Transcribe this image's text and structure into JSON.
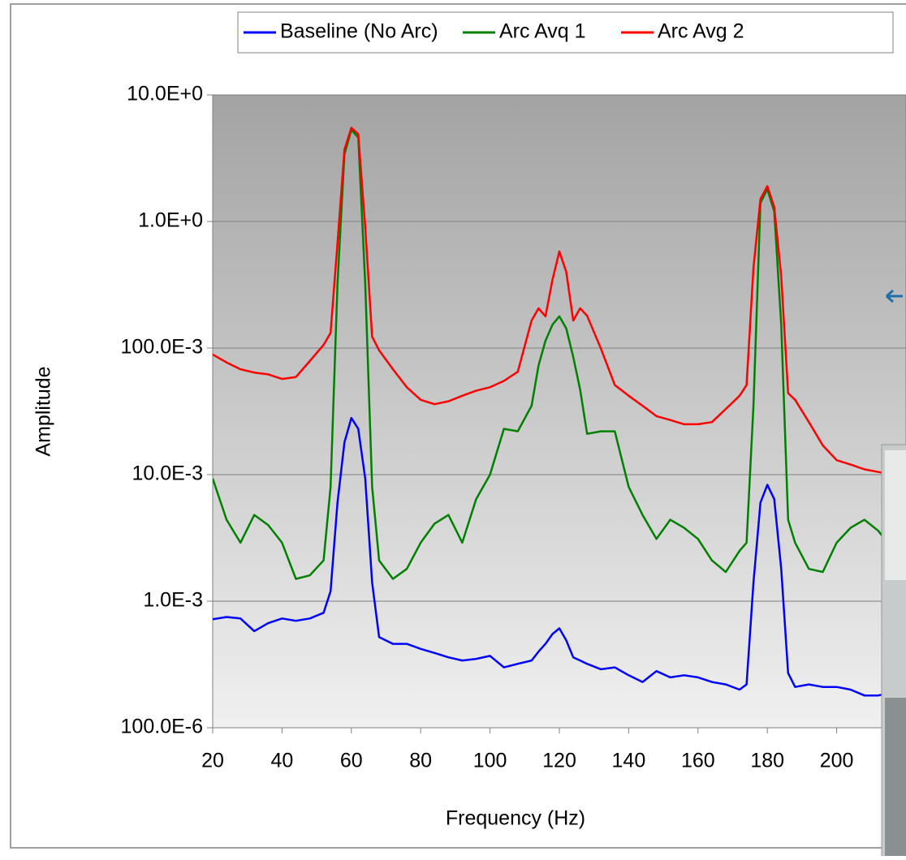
{
  "chart_data": {
    "type": "line",
    "x_label": "Frequency (Hz)",
    "y_label": "Amplitude",
    "x": [
      20,
      24,
      28,
      32,
      36,
      40,
      44,
      48,
      52,
      54,
      56,
      58,
      60,
      62,
      64,
      66,
      68,
      72,
      76,
      80,
      84,
      88,
      92,
      96,
      100,
      104,
      108,
      112,
      114,
      116,
      118,
      120,
      122,
      124,
      126,
      128,
      132,
      136,
      140,
      144,
      148,
      152,
      156,
      160,
      164,
      168,
      172,
      174,
      176,
      178,
      180,
      182,
      184,
      186,
      188,
      192,
      196,
      200,
      204,
      208,
      212,
      216,
      220
    ],
    "series": [
      {
        "name": "Baseline (No Arc)",
        "color": "#0000ff",
        "values": [
          0.00072,
          0.00075,
          0.00073,
          0.00058,
          0.00067,
          0.00073,
          0.0007,
          0.00073,
          0.00081,
          0.0012,
          0.006,
          0.018,
          0.028,
          0.023,
          0.0093,
          0.0014,
          0.00052,
          0.00046,
          0.00046,
          0.00042,
          0.00039,
          0.00036,
          0.00034,
          0.00035,
          0.00037,
          0.0003,
          0.00032,
          0.00034,
          0.0004,
          0.00046,
          0.00055,
          0.00061,
          0.00049,
          0.00036,
          0.00034,
          0.00032,
          0.00029,
          0.0003,
          0.00026,
          0.00023,
          0.00028,
          0.00025,
          0.00026,
          0.00025,
          0.00023,
          0.00022,
          0.0002,
          0.00022,
          0.0014,
          0.006,
          0.0083,
          0.0064,
          0.0018,
          0.00027,
          0.00021,
          0.00022,
          0.00021,
          0.00021,
          0.0002,
          0.00018,
          0.00018,
          0.00019,
          0.0002
        ]
      },
      {
        "name": "Arc Avq 1",
        "color": "#008000",
        "values": [
          0.0093,
          0.0044,
          0.0029,
          0.0048,
          0.004,
          0.0029,
          0.0015,
          0.0016,
          0.0021,
          0.008,
          0.32,
          3.4,
          5.3,
          4.6,
          0.32,
          0.008,
          0.0021,
          0.0015,
          0.0018,
          0.0029,
          0.0041,
          0.0048,
          0.0029,
          0.0064,
          0.01,
          0.023,
          0.022,
          0.035,
          0.073,
          0.114,
          0.153,
          0.178,
          0.143,
          0.085,
          0.047,
          0.021,
          0.022,
          0.022,
          0.008,
          0.0048,
          0.0031,
          0.0044,
          0.0038,
          0.0031,
          0.0021,
          0.0017,
          0.0025,
          0.0029,
          0.035,
          1.4,
          1.8,
          1.2,
          0.153,
          0.0044,
          0.0029,
          0.0018,
          0.0017,
          0.0029,
          0.0038,
          0.0044,
          0.0036,
          0.0026,
          0.0029
        ]
      },
      {
        "name": "Arc Avg 2",
        "color": "#ff0000",
        "values": [
          0.089,
          0.077,
          0.068,
          0.064,
          0.062,
          0.057,
          0.059,
          0.079,
          0.106,
          0.132,
          0.67,
          3.7,
          5.5,
          4.9,
          0.9,
          0.123,
          0.096,
          0.068,
          0.049,
          0.039,
          0.036,
          0.038,
          0.042,
          0.046,
          0.049,
          0.055,
          0.065,
          0.165,
          0.206,
          0.178,
          0.345,
          0.58,
          0.4,
          0.165,
          0.206,
          0.18,
          0.099,
          0.051,
          0.042,
          0.035,
          0.029,
          0.027,
          0.025,
          0.025,
          0.026,
          0.033,
          0.042,
          0.051,
          0.43,
          1.5,
          1.9,
          1.3,
          0.37,
          0.044,
          0.039,
          0.026,
          0.017,
          0.013,
          0.012,
          0.011,
          0.0105,
          0.01,
          0.0097
        ]
      }
    ],
    "xlim": [
      20,
      220
    ],
    "xticks": [
      20,
      40,
      60,
      80,
      100,
      120,
      140,
      160,
      180,
      200
    ],
    "ylim": [
      0.0001,
      10
    ],
    "log_y": true,
    "yticks": [
      {
        "value": 0.0001,
        "label": "100.0E-6"
      },
      {
        "value": 0.001,
        "label": "1.0E-3"
      },
      {
        "value": 0.01,
        "label": "10.0E-3"
      },
      {
        "value": 0.1,
        "label": "100.0E-3"
      },
      {
        "value": 1,
        "label": "1.0E+0"
      },
      {
        "value": 10,
        "label": "10.0E+0"
      }
    ],
    "grid": true,
    "legend": "top"
  }
}
